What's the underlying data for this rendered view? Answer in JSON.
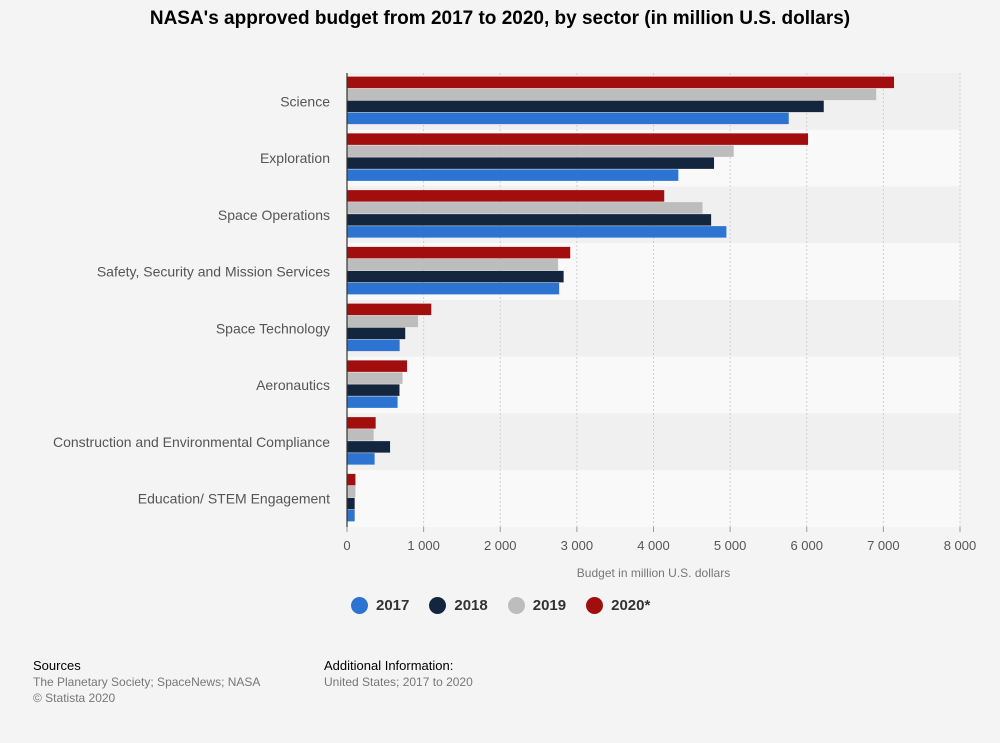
{
  "chart_data": {
    "type": "bar",
    "orientation": "horizontal",
    "title": "NASA's approved budget from 2017 to 2020, by sector (in million U.S. dollars)",
    "categories": [
      "Science",
      "Exploration",
      "Space Operations",
      "Safety, Security and Mission Services",
      "Space Technology",
      "Aeronautics",
      "Construction and Environmental Compliance",
      "Education/ STEM Engagement"
    ],
    "series": [
      {
        "name": "2020*",
        "color": "#a20d0d",
        "values": [
          7139,
          6017,
          4140,
          2913,
          1100,
          784,
          374,
          110
        ]
      },
      {
        "name": "2019",
        "color": "#bdbdbd",
        "values": [
          6906,
          5047,
          4639,
          2755,
          927,
          725,
          348,
          110
        ]
      },
      {
        "name": "2018",
        "color": "#14263e",
        "values": [
          6222,
          4790,
          4752,
          2827,
          760,
          685,
          562,
          100
        ]
      },
      {
        "name": "2017",
        "color": "#2c73d2",
        "values": [
          5765,
          4324,
          4951,
          2769,
          687,
          660,
          360,
          100
        ]
      }
    ],
    "legend_order": [
      "2017",
      "2018",
      "2019",
      "2020*"
    ],
    "xlabel": "Budget in million U.S. dollars",
    "ylabel": "",
    "xlim": [
      0,
      8000
    ],
    "xticks": [
      0,
      1000,
      2000,
      3000,
      4000,
      5000,
      6000,
      7000,
      8000
    ],
    "xtick_labels": [
      "0",
      "1 000",
      "2 000",
      "3 000",
      "4 000",
      "5 000",
      "6 000",
      "7 000",
      "8 000"
    ],
    "grid": true,
    "legend_position": "bottom"
  },
  "footer": {
    "sources_heading": "Sources",
    "sources_text": "The Planetary Society; SpaceNews; NASA",
    "copyright": "© Statista 2020",
    "additional_heading": "Additional Information:",
    "additional_text": "United States; 2017 to 2020"
  }
}
